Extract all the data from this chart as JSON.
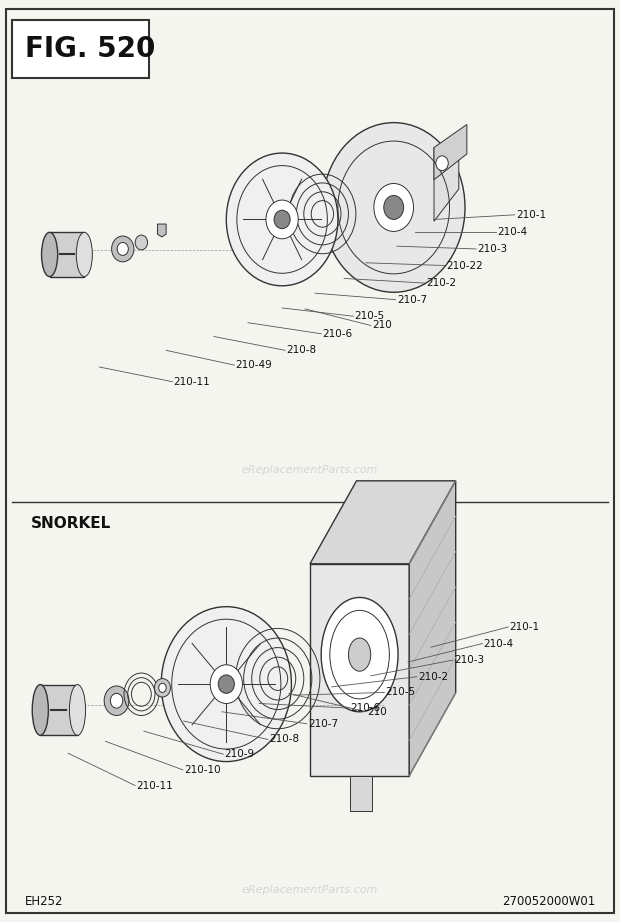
{
  "title": "FIG. 520",
  "fig_width": 6.2,
  "fig_height": 9.22,
  "bg_color": "#f5f5f0",
  "border_color": "#333333",
  "line_color": "#333333",
  "watermark": "eReplacementParts.com",
  "footer_left": "EH252",
  "footer_right": "270052000W01",
  "snorkel_label": "SNORKEL"
}
